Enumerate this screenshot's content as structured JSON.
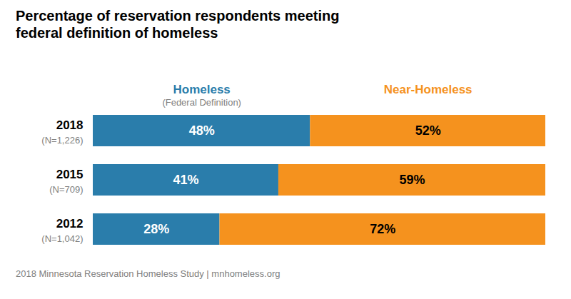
{
  "chart_data": {
    "type": "bar",
    "orientation": "horizontal",
    "stacked": true,
    "data_labels": true,
    "legend": "top",
    "tick_labels": false,
    "title": "Percentage of reservation respondents meeting\nfederal definition of homeless",
    "caption": "2018 Minnesota Reservation Homeless Study | mnhomeless.org",
    "categories": [
      "2018",
      "2015",
      "2012"
    ],
    "series": [
      {
        "name": "Homeless",
        "color": "#2a7dab",
        "values": [
          48,
          41,
          28
        ],
        "value_labels": [
          "48%",
          "41%",
          "28%"
        ]
      },
      {
        "name": "Near-Homeless",
        "color": "#f5921e",
        "values": [
          52,
          59,
          72
        ],
        "value_labels": [
          "52%",
          "59%",
          "72%"
        ]
      }
    ],
    "annotations": [
      {
        "series": "Homeless",
        "text": "(Federal Definition)"
      },
      {
        "category": "2018",
        "text": "(N=1,226)"
      },
      {
        "category": "2015",
        "text": "(N=709)"
      },
      {
        "category": "2012",
        "text": "(N=1,042)"
      }
    ],
    "xlim": [
      0,
      100
    ]
  }
}
